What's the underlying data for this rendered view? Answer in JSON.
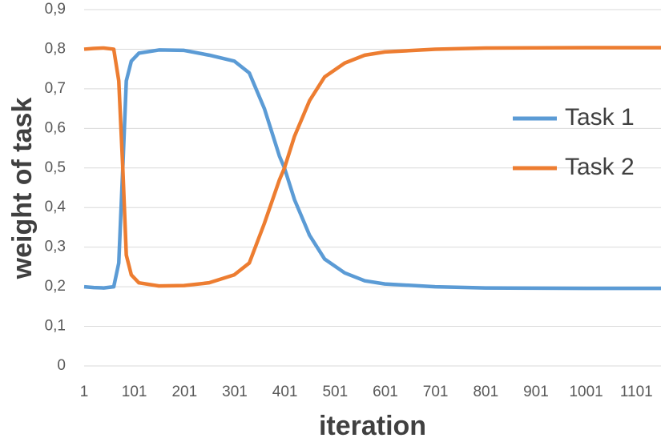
{
  "chart_data": {
    "type": "line",
    "x_label": "iteration",
    "y_label": "weight of task",
    "x": [
      1,
      20,
      40,
      60,
      70,
      78,
      85,
      95,
      110,
      150,
      200,
      250,
      300,
      330,
      360,
      390,
      400,
      420,
      450,
      480,
      520,
      560,
      600,
      700,
      800,
      1000,
      1150
    ],
    "series": [
      {
        "name": "Task 1",
        "color": "#5b9bd5",
        "values": [
          0.2,
          0.198,
          0.197,
          0.2,
          0.26,
          0.5,
          0.72,
          0.77,
          0.79,
          0.798,
          0.797,
          0.785,
          0.77,
          0.74,
          0.65,
          0.53,
          0.5,
          0.42,
          0.33,
          0.27,
          0.235,
          0.215,
          0.207,
          0.2,
          0.197,
          0.196,
          0.196
        ]
      },
      {
        "name": "Task 2",
        "color": "#ed7d31",
        "values": [
          0.8,
          0.802,
          0.803,
          0.8,
          0.72,
          0.5,
          0.28,
          0.23,
          0.21,
          0.202,
          0.203,
          0.21,
          0.23,
          0.26,
          0.36,
          0.47,
          0.5,
          0.58,
          0.67,
          0.73,
          0.765,
          0.785,
          0.793,
          0.8,
          0.803,
          0.804,
          0.804
        ]
      }
    ],
    "xlim": [
      1,
      1150
    ],
    "xticks": [
      1,
      101,
      201,
      301,
      401,
      501,
      601,
      701,
      801,
      901,
      1001,
      1101
    ],
    "ylim": [
      0,
      0.9
    ],
    "yticks": [
      0,
      {
        "value": 0.1,
        "label": "0,1"
      },
      {
        "value": 0.2,
        "label": "0,2"
      },
      {
        "value": 0.3,
        "label": "0,3"
      },
      {
        "value": 0.4,
        "label": "0,4"
      },
      {
        "value": 0.5,
        "label": "0,5"
      },
      {
        "value": 0.6,
        "label": "0,6"
      },
      {
        "value": 0.7,
        "label": "0,7"
      },
      {
        "value": 0.8,
        "label": "0,8"
      },
      {
        "value": 0.9,
        "label": "0,9"
      }
    ],
    "grid": true,
    "legend": "right"
  }
}
